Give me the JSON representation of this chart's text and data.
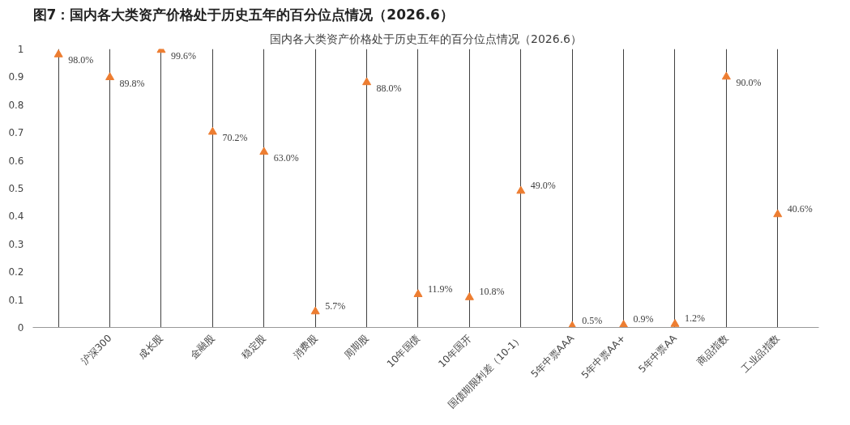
{
  "chart_data": {
    "type": "scatter",
    "title": "图7：国内各大类资产价格处于历史五年的百分位点情况（2026.6）",
    "subtitle": "国内各大类资产价格处于历史五年的百分位点情况（2026.6）",
    "categories": [
      null,
      "沪深300",
      "成长股",
      "金融股",
      "稳定股",
      "消费股",
      "周期股",
      "10年国债",
      "10年国开",
      "国债期限利差（10-1）",
      "5年中票AAA",
      "5年中票AA+",
      "5年中票AA",
      "商品指数",
      "工业品指数"
    ],
    "values": [
      0.98,
      0.898,
      0.996,
      0.702,
      0.63,
      0.057,
      0.88,
      0.119,
      0.108,
      0.49,
      0.005,
      0.009,
      0.012,
      0.9,
      0.406
    ],
    "value_labels": [
      "98.0%",
      "89.8%",
      "99.6%",
      "70.2%",
      "63.0%",
      "5.7%",
      "88.0%",
      "11.9%",
      "10.8%",
      "49.0%",
      "0.5%",
      "0.9%",
      "1.2%",
      "90.0%",
      "40.6%"
    ],
    "color": "#ed7d31",
    "marker": "triangle",
    "grid": "x",
    "ylim": [
      0,
      1
    ],
    "yticks": [
      0,
      0.1,
      0.2,
      0.3,
      0.4,
      0.5,
      0.6,
      0.7,
      0.8,
      0.9,
      1
    ]
  }
}
